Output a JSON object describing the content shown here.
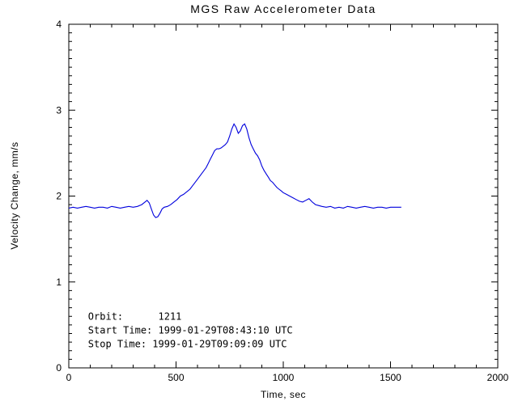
{
  "title": "MGS Raw Accelerometer Data",
  "colors": {
    "line": "#0000dd",
    "axis": "#000000",
    "background": "#ffffff"
  },
  "chart_data": {
    "type": "line",
    "title": "MGS Raw Accelerometer Data",
    "xlabel": "Time, sec",
    "ylabel": "Velocity Change, mm/s",
    "xlim": [
      0,
      2000
    ],
    "ylim": [
      0,
      4
    ],
    "x_major_ticks": [
      0,
      500,
      1000,
      1500,
      2000
    ],
    "y_major_ticks": [
      0,
      1,
      2,
      3,
      4
    ],
    "x_minor_interval": 100,
    "y_minor_interval": 0.1,
    "grid": false,
    "legend": "none",
    "series": [
      {
        "name": "velocity_change",
        "color": "#0000dd",
        "x": [
          0,
          20,
          40,
          60,
          80,
          100,
          120,
          140,
          160,
          180,
          200,
          220,
          240,
          260,
          280,
          300,
          320,
          340,
          355,
          365,
          375,
          385,
          395,
          405,
          415,
          425,
          435,
          445,
          460,
          475,
          490,
          505,
          520,
          535,
          550,
          565,
          580,
          595,
          610,
          625,
          640,
          650,
          660,
          670,
          680,
          690,
          700,
          710,
          720,
          730,
          740,
          750,
          760,
          770,
          780,
          790,
          800,
          810,
          820,
          830,
          840,
          850,
          860,
          870,
          880,
          890,
          900,
          910,
          920,
          930,
          940,
          950,
          960,
          970,
          980,
          990,
          1000,
          1015,
          1030,
          1045,
          1060,
          1075,
          1090,
          1105,
          1120,
          1135,
          1150,
          1165,
          1180,
          1200,
          1220,
          1240,
          1260,
          1280,
          1300,
          1320,
          1340,
          1360,
          1380,
          1400,
          1420,
          1440,
          1460,
          1480,
          1500,
          1520,
          1540,
          1550
        ],
        "y": [
          1.86,
          1.87,
          1.86,
          1.87,
          1.88,
          1.87,
          1.86,
          1.87,
          1.87,
          1.86,
          1.88,
          1.87,
          1.86,
          1.87,
          1.88,
          1.87,
          1.88,
          1.9,
          1.93,
          1.95,
          1.92,
          1.85,
          1.78,
          1.75,
          1.76,
          1.8,
          1.85,
          1.87,
          1.88,
          1.9,
          1.93,
          1.96,
          2.0,
          2.02,
          2.05,
          2.08,
          2.13,
          2.18,
          2.23,
          2.28,
          2.33,
          2.38,
          2.43,
          2.48,
          2.53,
          2.55,
          2.55,
          2.56,
          2.58,
          2.6,
          2.63,
          2.7,
          2.78,
          2.84,
          2.8,
          2.73,
          2.76,
          2.82,
          2.84,
          2.78,
          2.68,
          2.6,
          2.55,
          2.5,
          2.47,
          2.42,
          2.35,
          2.3,
          2.26,
          2.22,
          2.18,
          2.16,
          2.13,
          2.1,
          2.08,
          2.06,
          2.04,
          2.02,
          2.0,
          1.98,
          1.96,
          1.94,
          1.93,
          1.95,
          1.97,
          1.93,
          1.9,
          1.89,
          1.88,
          1.87,
          1.88,
          1.86,
          1.87,
          1.86,
          1.88,
          1.87,
          1.86,
          1.87,
          1.88,
          1.87,
          1.86,
          1.87,
          1.87,
          1.86,
          1.87,
          1.87,
          1.87,
          1.87
        ]
      }
    ],
    "annotations": [
      {
        "text": "Orbit:      1211",
        "x": 90,
        "y": 0.56
      },
      {
        "text": "Start Time: 1999-01-29T08:43:10 UTC",
        "x": 90,
        "y": 0.4
      },
      {
        "text": "Stop Time: 1999-01-29T09:09:09 UTC",
        "x": 90,
        "y": 0.24
      }
    ]
  }
}
